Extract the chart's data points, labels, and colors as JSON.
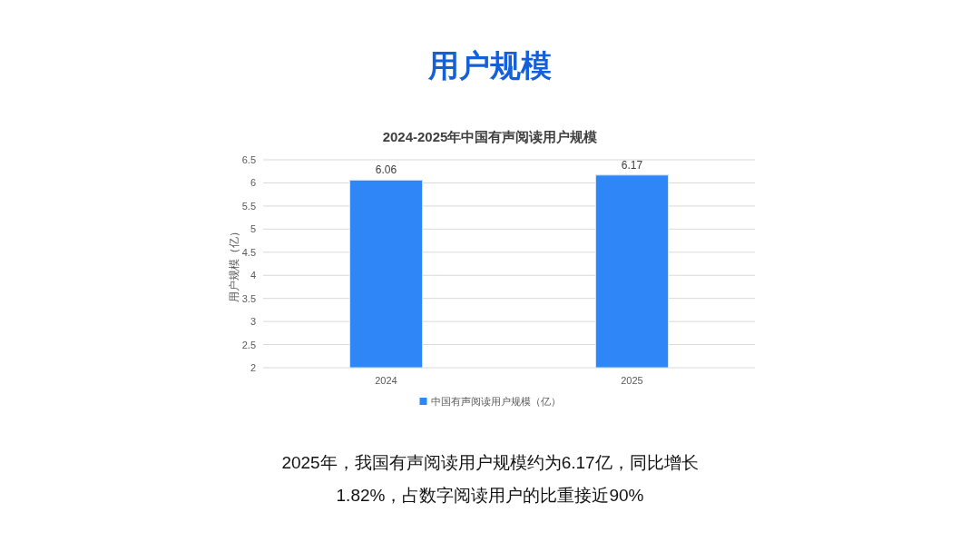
{
  "chart_data": {
    "type": "bar",
    "title": "用户规模",
    "subtitle": "2024-2025年中国有声阅读用户规模",
    "ylabel": "用户规模（亿）",
    "categories": [
      "2024",
      "2025"
    ],
    "series": [
      {
        "name": "中国有声阅读用户规模（亿）",
        "color": "#2f86f6",
        "values": [
          6.06,
          6.17
        ]
      }
    ],
    "ylim": [
      2,
      6.5
    ],
    "yticks": [
      2,
      2.5,
      3,
      3.5,
      4,
      4.5,
      5,
      5.5,
      6,
      6.5
    ],
    "grid": "y",
    "legend": "bottom",
    "data_labels": true,
    "annotations": [
      "2025年，我国有声阅读用户规模约为6.17亿，同比增长1.82%，占数字阅读用户的比重接近90%"
    ]
  }
}
